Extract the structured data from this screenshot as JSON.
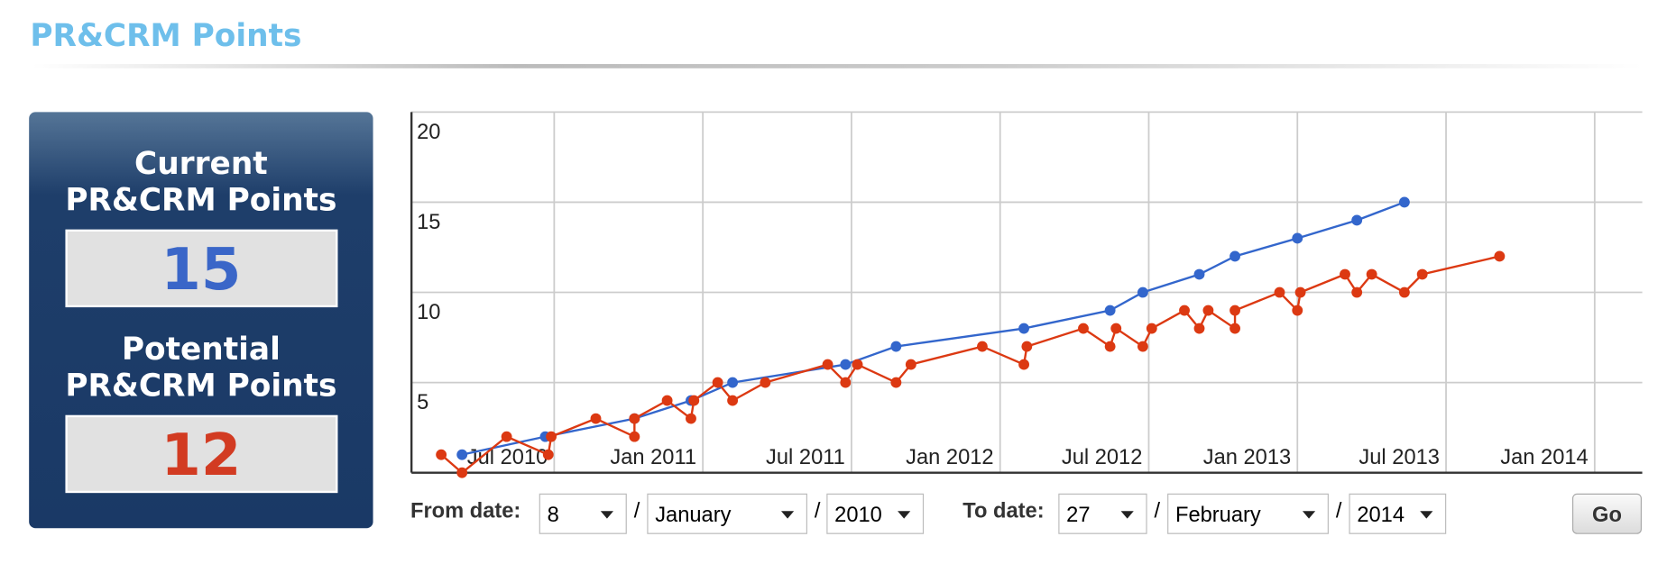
{
  "header": {
    "title": "PR&CRM Points"
  },
  "panel": {
    "current_label": [
      "Current",
      "PR&CRM Points"
    ],
    "current_value": 15,
    "potential_label": [
      "Potential",
      "PR&CRM Points"
    ],
    "potential_value": 12
  },
  "chart_data": {
    "type": "line",
    "xlim": [
      2010.02,
      2014.16
    ],
    "xticks": [
      {
        "value": 2010.5,
        "label": "Jul 2010"
      },
      {
        "value": 2011.0,
        "label": "Jan 2011"
      },
      {
        "value": 2011.5,
        "label": "Jul 2011"
      },
      {
        "value": 2012.0,
        "label": "Jan 2012"
      },
      {
        "value": 2012.5,
        "label": "Jul 2012"
      },
      {
        "value": 2013.0,
        "label": "Jan 2013"
      },
      {
        "value": 2013.5,
        "label": "Jul 2013"
      },
      {
        "value": 2014.0,
        "label": "Jan 2014"
      }
    ],
    "ylim": [
      0,
      20
    ],
    "yticks": [
      5,
      10,
      15,
      20
    ],
    "grid": true,
    "series": [
      {
        "color": "#3366cc",
        "x": [
          2010.19,
          2010.47,
          2010.77,
          2010.96,
          2011.1,
          2011.48,
          2011.65,
          2012.08,
          2012.37,
          2012.48,
          2012.67,
          2012.79,
          2013.0,
          2013.2,
          2013.36
        ],
        "values": [
          1,
          2,
          3,
          4,
          5,
          6,
          7,
          8,
          9,
          10,
          11,
          12,
          13,
          14,
          15
        ]
      },
      {
        "color": "#dc3912",
        "x": [
          2010.12,
          2010.19,
          2010.34,
          2010.48,
          2010.49,
          2010.64,
          2010.77,
          2010.77,
          2010.88,
          2010.96,
          2010.97,
          2011.05,
          2011.1,
          2011.21,
          2011.42,
          2011.48,
          2011.52,
          2011.65,
          2011.7,
          2011.94,
          2012.08,
          2012.09,
          2012.28,
          2012.37,
          2012.39,
          2012.48,
          2012.51,
          2012.62,
          2012.67,
          2012.7,
          2012.79,
          2012.79,
          2012.94,
          2013.0,
          2013.01,
          2013.16,
          2013.2,
          2013.25,
          2013.36,
          2013.42,
          2013.68
        ],
        "values": [
          1,
          0,
          2,
          1,
          2,
          3,
          2,
          3,
          4,
          3,
          4,
          5,
          4,
          5,
          6,
          5,
          6,
          5,
          6,
          7,
          6,
          7,
          8,
          7,
          8,
          7,
          8,
          9,
          8,
          9,
          8,
          9,
          10,
          9,
          10,
          11,
          10,
          11,
          10,
          11,
          12
        ]
      }
    ]
  },
  "form": {
    "from_label": "From date:",
    "from_day": "8",
    "from_month": "January",
    "from_year": "2010",
    "to_label": "To date:",
    "to_day": "27",
    "to_month": "February",
    "to_year": "2014",
    "separator": "/",
    "go": "Go"
  }
}
